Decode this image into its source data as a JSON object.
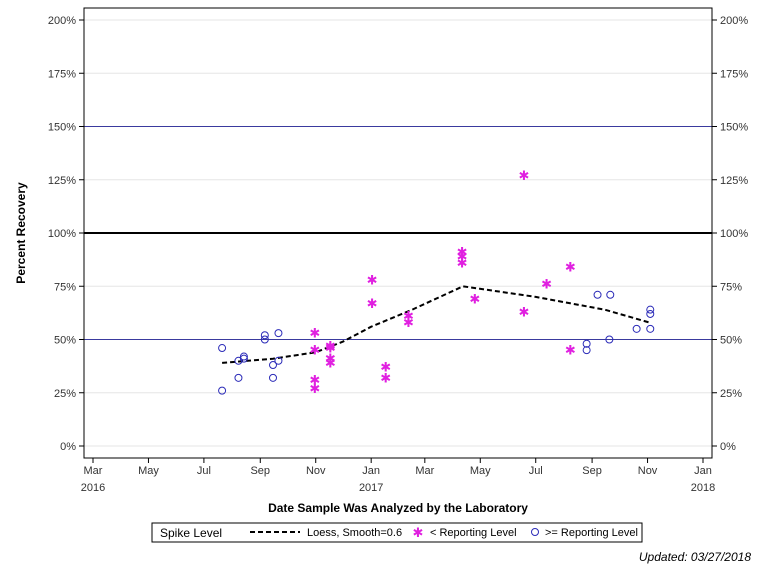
{
  "chart_data": {
    "type": "scatter",
    "xlabel": "Date Sample Was Analyzed by the Laboratory",
    "ylabel": "Percent Recovery",
    "ylim": [
      0,
      200
    ],
    "yticks": [
      0,
      25,
      50,
      75,
      100,
      125,
      150,
      175,
      200
    ],
    "ytick_labels": [
      "0%",
      "25%",
      "50%",
      "75%",
      "100%",
      "125%",
      "150%",
      "175%",
      "200%"
    ],
    "xlim": [
      "2016-03-01",
      "2018-01-01"
    ],
    "xticks": [
      {
        "date": "2016-03-01",
        "label": "Mar",
        "year": "2016"
      },
      {
        "date": "2016-05-01",
        "label": "May",
        "year": ""
      },
      {
        "date": "2016-07-01",
        "label": "Jul",
        "year": ""
      },
      {
        "date": "2016-09-01",
        "label": "Sep",
        "year": ""
      },
      {
        "date": "2016-11-01",
        "label": "Nov",
        "year": ""
      },
      {
        "date": "2017-01-01",
        "label": "Jan",
        "year": "2017"
      },
      {
        "date": "2017-03-01",
        "label": "Mar",
        "year": ""
      },
      {
        "date": "2017-05-01",
        "label": "May",
        "year": ""
      },
      {
        "date": "2017-07-01",
        "label": "Jul",
        "year": ""
      },
      {
        "date": "2017-09-01",
        "label": "Sep",
        "year": ""
      },
      {
        "date": "2017-11-01",
        "label": "Nov",
        "year": ""
      },
      {
        "date": "2018-01-01",
        "label": "Jan",
        "year": "2018"
      }
    ],
    "grid": true,
    "reference_lines": [
      {
        "y": 150,
        "color": "#3a3a9e",
        "width": 1
      },
      {
        "y": 100,
        "color": "#000000",
        "width": 2
      },
      {
        "y": 50,
        "color": "#3a3a9e",
        "width": 1
      }
    ],
    "series": [
      {
        "name": "Loess, Smoothe=0.6",
        "kind": "line",
        "color": "#000000",
        "points": [
          {
            "x": "2016-07-21",
            "y": 39
          },
          {
            "x": "2016-09-15",
            "y": 41
          },
          {
            "x": "2016-11-01",
            "y": 44
          },
          {
            "x": "2016-12-01",
            "y": 49
          },
          {
            "x": "2017-01-01",
            "y": 56
          },
          {
            "x": "2017-02-15",
            "y": 64
          },
          {
            "x": "2017-04-12",
            "y": 75
          },
          {
            "x": "2017-07-01",
            "y": 70
          },
          {
            "x": "2017-09-15",
            "y": 64
          },
          {
            "x": "2017-11-03",
            "y": 58
          }
        ]
      },
      {
        "name": "< Reporting Level",
        "kind": "star",
        "color": "#e020e0",
        "points": [
          {
            "x": "2016-10-31",
            "y": 53
          },
          {
            "x": "2016-10-31",
            "y": 45
          },
          {
            "x": "2016-10-31",
            "y": 31
          },
          {
            "x": "2016-10-31",
            "y": 27
          },
          {
            "x": "2016-11-17",
            "y": 47
          },
          {
            "x": "2016-11-17",
            "y": 46
          },
          {
            "x": "2016-11-17",
            "y": 41
          },
          {
            "x": "2016-11-17",
            "y": 39
          },
          {
            "x": "2017-01-02",
            "y": 78
          },
          {
            "x": "2017-01-02",
            "y": 67
          },
          {
            "x": "2017-01-17",
            "y": 37
          },
          {
            "x": "2017-01-17",
            "y": 32
          },
          {
            "x": "2017-02-11",
            "y": 61
          },
          {
            "x": "2017-02-11",
            "y": 58
          },
          {
            "x": "2017-04-11",
            "y": 91
          },
          {
            "x": "2017-04-11",
            "y": 89
          },
          {
            "x": "2017-04-11",
            "y": 86
          },
          {
            "x": "2017-04-25",
            "y": 69
          },
          {
            "x": "2017-06-18",
            "y": 127
          },
          {
            "x": "2017-06-18",
            "y": 63
          },
          {
            "x": "2017-07-13",
            "y": 76
          },
          {
            "x": "2017-08-08",
            "y": 84
          },
          {
            "x": "2017-08-08",
            "y": 45
          }
        ]
      },
      {
        "name": ">= Reporting Level",
        "kind": "circle",
        "color": "#2b2bb8",
        "points": [
          {
            "x": "2016-07-21",
            "y": 46
          },
          {
            "x": "2016-07-21",
            "y": 26
          },
          {
            "x": "2016-08-08",
            "y": 40
          },
          {
            "x": "2016-08-08",
            "y": 32
          },
          {
            "x": "2016-08-14",
            "y": 42
          },
          {
            "x": "2016-08-14",
            "y": 41
          },
          {
            "x": "2016-09-06",
            "y": 52
          },
          {
            "x": "2016-09-06",
            "y": 50
          },
          {
            "x": "2016-09-15",
            "y": 38
          },
          {
            "x": "2016-09-15",
            "y": 32
          },
          {
            "x": "2016-09-21",
            "y": 53
          },
          {
            "x": "2016-09-21",
            "y": 40
          },
          {
            "x": "2017-08-26",
            "y": 48
          },
          {
            "x": "2017-08-26",
            "y": 45
          },
          {
            "x": "2017-09-07",
            "y": 71
          },
          {
            "x": "2017-09-21",
            "y": 71
          },
          {
            "x": "2017-09-20",
            "y": 50
          },
          {
            "x": "2017-10-20",
            "y": 55
          },
          {
            "x": "2017-11-04",
            "y": 64
          },
          {
            "x": "2017-11-04",
            "y": 62
          },
          {
            "x": "2017-11-04",
            "y": 55
          }
        ]
      }
    ],
    "legend": {
      "title": "Spike Level",
      "placement": "bottom",
      "entries": [
        {
          "label": "Loess, Smooth=0.6",
          "symbol": "dashed-line"
        },
        {
          "label": "< Reporting Level",
          "symbol": "star"
        },
        {
          "label": ">= Reporting Level",
          "symbol": "circle"
        }
      ]
    }
  },
  "footnote": "Updated: 03/27/2018"
}
